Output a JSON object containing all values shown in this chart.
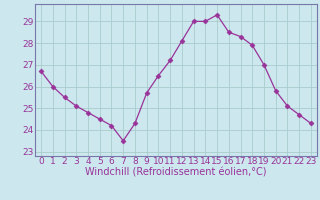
{
  "x": [
    0,
    1,
    2,
    3,
    4,
    5,
    6,
    7,
    8,
    9,
    10,
    11,
    12,
    13,
    14,
    15,
    16,
    17,
    18,
    19,
    20,
    21,
    22,
    23
  ],
  "y": [
    26.7,
    26.0,
    25.5,
    25.1,
    24.8,
    24.5,
    24.2,
    23.5,
    24.3,
    25.7,
    26.5,
    27.2,
    28.1,
    29.0,
    29.0,
    29.3,
    28.5,
    28.3,
    27.9,
    27.0,
    25.8,
    25.1,
    24.7,
    24.3
  ],
  "line_color": "#993399",
  "marker": "D",
  "marker_size": 2.5,
  "bg_color": "#cce8ee",
  "grid_color": "#aacccc",
  "xlabel": "Windchill (Refroidissement éolien,°C)",
  "xlabel_color": "#993399",
  "tick_color": "#993399",
  "ylim_min": 22.8,
  "ylim_max": 29.8,
  "yticks": [
    23,
    24,
    25,
    26,
    27,
    28,
    29
  ],
  "xticks": [
    0,
    1,
    2,
    3,
    4,
    5,
    6,
    7,
    8,
    9,
    10,
    11,
    12,
    13,
    14,
    15,
    16,
    17,
    18,
    19,
    20,
    21,
    22,
    23
  ],
  "spine_color": "#7777aa",
  "font_size": 6.5,
  "xlabel_fontsize": 7.0
}
